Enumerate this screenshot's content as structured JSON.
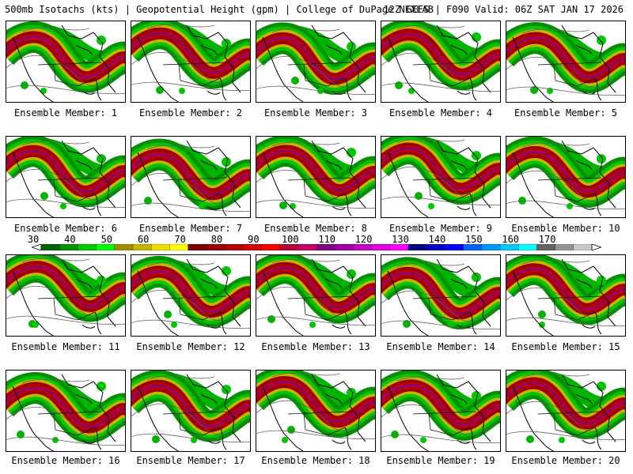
{
  "header": {
    "title_left": "500mb Isotachs (kts) | Geopotential Height (gpm) | College of DuPage NEXLAB",
    "title_right": "12Z GEFS | F090 Valid: 06Z SAT JAN 17 2026"
  },
  "members": [
    {
      "label": "Ensemble Member: 1"
    },
    {
      "label": "Ensemble Member: 2"
    },
    {
      "label": "Ensemble Member: 3"
    },
    {
      "label": "Ensemble Member: 4"
    },
    {
      "label": "Ensemble Member: 5"
    },
    {
      "label": "Ensemble Member: 6"
    },
    {
      "label": "Ensemble Member: 7"
    },
    {
      "label": "Ensemble Member: 8"
    },
    {
      "label": "Ensemble Member: 9"
    },
    {
      "label": "Ensemble Member: 10"
    },
    {
      "label": "Ensemble Member: 11"
    },
    {
      "label": "Ensemble Member: 12"
    },
    {
      "label": "Ensemble Member: 13"
    },
    {
      "label": "Ensemble Member: 14"
    },
    {
      "label": "Ensemble Member: 15"
    },
    {
      "label": "Ensemble Member: 16"
    },
    {
      "label": "Ensemble Member: 17"
    },
    {
      "label": "Ensemble Member: 18"
    },
    {
      "label": "Ensemble Member: 19"
    },
    {
      "label": "Ensemble Member: 20"
    }
  ],
  "colorbar": {
    "units": "kts",
    "labels": [
      "30",
      "40",
      "50",
      "60",
      "70",
      "80",
      "90",
      "100",
      "110",
      "120",
      "130",
      "140",
      "150",
      "160",
      "170"
    ],
    "colors": [
      "#006400",
      "#009000",
      "#00c800",
      "#00ff00",
      "#a08c00",
      "#c8b400",
      "#f0dc00",
      "#ffff00",
      "#800000",
      "#9c0000",
      "#b40000",
      "#d20000",
      "#ff0000",
      "#b40032",
      "#c80064",
      "#800080",
      "#a000a0",
      "#c800c8",
      "#e000e0",
      "#ff00ff",
      "#000080",
      "#0000c8",
      "#0000ff",
      "#0064ff",
      "#0096ff",
      "#00c8ff",
      "#00ffff",
      "#646464",
      "#969696",
      "#c8c8c8"
    ]
  }
}
